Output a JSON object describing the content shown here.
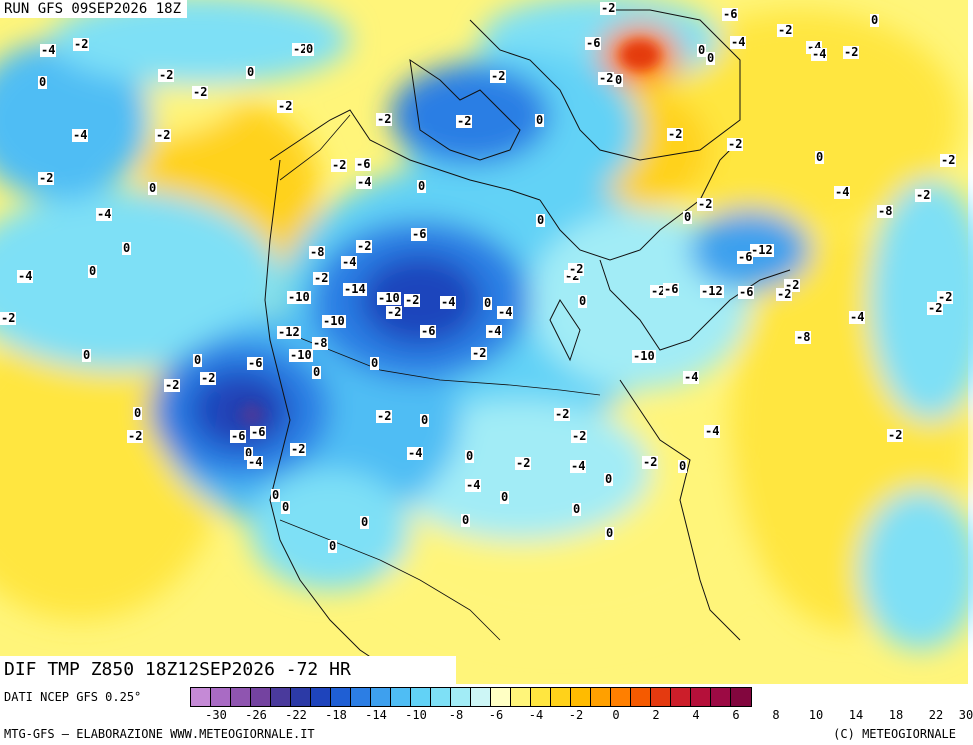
{
  "header": {
    "run_title": "RUN GFS 09SEP2026 18Z",
    "field_title": "DIF TMP Z850 18Z12SEP2026 -72 HR"
  },
  "footer": {
    "data_source": "DATI NCEP GFS 0.25°",
    "credit_left": "MTG-GFS – ELABORAZIONE WWW.METEOGIORNALE.IT",
    "credit_right": "(C) METEOGIORNALE"
  },
  "legend": {
    "colors": [
      "#c58ad6",
      "#a96bc4",
      "#8f55b0",
      "#7443a0",
      "#4a3a9c",
      "#2c3aa6",
      "#1e44bc",
      "#1f5fd4",
      "#2c7ee4",
      "#3ea0ee",
      "#4fbdf4",
      "#62d2f6",
      "#7ee0f6",
      "#a2ecf6",
      "#cdf6f6",
      "#ffffc4",
      "#fff57a",
      "#ffe640",
      "#ffd21a",
      "#ffbb00",
      "#ffa000",
      "#ff7f00",
      "#f55a00",
      "#e43a10",
      "#cc1e2a",
      "#b5103a",
      "#9c0a44",
      "#82063e"
    ],
    "tick_labels": [
      "-30",
      "-26",
      "-22",
      "-18",
      "-14",
      "-10",
      "-8",
      "-6",
      "-4",
      "-2",
      "0",
      "2",
      "4",
      "6",
      "8",
      "10",
      "14",
      "18",
      "22",
      "30"
    ]
  },
  "map_labels": [
    "-2",
    "-6",
    "0",
    "-2",
    "-4",
    "0",
    "0",
    "-6",
    "-4",
    "-2",
    "-2",
    "-4",
    "0",
    "-2",
    "0",
    "-4",
    "-2",
    "0",
    "-2",
    "-2",
    "0",
    "-2",
    "-4",
    "-2",
    "-2",
    "0",
    "-4",
    "0",
    "-4",
    "0",
    "-2",
    "0",
    "-2",
    "-2",
    "0",
    "-2",
    "-2",
    "-2",
    "0",
    "-2",
    "-4",
    "-8",
    "-2",
    "0",
    "-2",
    "-6",
    "-4",
    "-2",
    "0",
    "-6",
    "-2",
    "-4",
    "-8",
    "-2",
    "-10",
    "-14",
    "-10",
    "-2",
    "-4",
    "0",
    "-4",
    "-4",
    "-2",
    "-2",
    "0",
    "0",
    "-2",
    "-6",
    "-12",
    "-6",
    "-2",
    "-2",
    "-12",
    "-6",
    "-4",
    "-8",
    "-2",
    "-2",
    "-2",
    "-6",
    "-10",
    "-8",
    "-12",
    "-10",
    "-6",
    "0",
    "-2",
    "-2",
    "-2",
    "0",
    "0",
    "-10",
    "-4",
    "0",
    "-2",
    "-6",
    "-6",
    "0",
    "-4",
    "-2",
    "-2",
    "0",
    "-4",
    "0",
    "-2",
    "-2",
    "-2",
    "-4",
    "0",
    "-2",
    "-4",
    "-2",
    "0",
    "0",
    "0",
    "-4",
    "0",
    "0",
    "0",
    "0",
    "0",
    "0"
  ]
}
